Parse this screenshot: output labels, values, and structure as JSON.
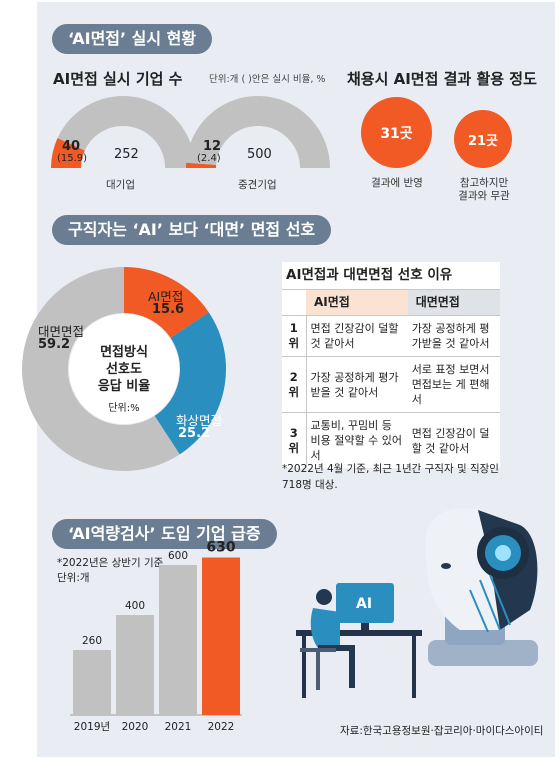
{
  "section1": {
    "title": "‘AI면접’ 실시 현황",
    "left_title": "AI면접 실시 기업 수",
    "unit_note": "단위:개 ( )안은 실시 비율, %",
    "right_title": "채용시 AI면접 결과 활용 정도"
  },
  "section2": {
    "title": "구직자는 ‘AI’ 보다 ‘대면’ 면접 선호",
    "center_line1": "면접방식",
    "center_line2": "선호도",
    "center_line3": "응답 비율",
    "center_unit": "단위:%",
    "table": {
      "title": "AI면접과 대면면접 선호 이유",
      "col_ai": "AI면접",
      "col_face": "대면면접",
      "rows": [
        {
          "rank": "1위",
          "ai": "면접 긴장감이 덜할 것 같아서",
          "face": "가장 공정하게 평가받을 것 같아서"
        },
        {
          "rank": "2위",
          "ai": "가장 공정하게 평가받을 것 같아서",
          "face": "서로 표정 보면서 면접보는 게 편해서"
        },
        {
          "rank": "3위",
          "ai": "교통비, 꾸밈비 등 비용 절약할 수 있어서",
          "face": "면접 긴장감이 덜할 것 같아서"
        }
      ]
    },
    "footnote": "*2022년 4월 기준, 최근 1년간 구직자 및 직장인 718명 대상."
  },
  "section3": {
    "title": "‘AI역량검사’ 도입 기업 급증",
    "note": "*2022년은 상반기 기준",
    "unit": "단위:개",
    "screen_text": "AI"
  },
  "source": "자료:한국고용정보원·잡코리아·마이다스아이티",
  "colors": {
    "accent": "#f15a24",
    "gray": "#c1c1c1",
    "blue": "#2a8fbf",
    "pill": "#6b7d92",
    "panel": "#e9edf3"
  },
  "chart_data": [
    {
      "type": "pie",
      "subtype": "half-donut",
      "title": "AI면접 실시 기업 수",
      "series": [
        {
          "category": "대기업",
          "values": [
            {
              "label": "40",
              "value": 40,
              "percent": "(15.9)"
            },
            {
              "label": "252",
              "value": 252
            }
          ]
        },
        {
          "category": "중견기업",
          "values": [
            {
              "label": "12",
              "value": 12,
              "percent": "(2.4)"
            },
            {
              "label": "500",
              "value": 500
            }
          ]
        }
      ]
    },
    {
      "type": "bubble",
      "title": "채용시 AI면접 결과 활용 정도",
      "items": [
        {
          "label": "결과에 반영",
          "value": 31,
          "text": "31곳"
        },
        {
          "label": "참고하지만 결과와 무관",
          "value": 21,
          "text": "21곳",
          "label_lines": [
            "참고하지만",
            "결과와 무관"
          ]
        }
      ]
    },
    {
      "type": "pie",
      "subtype": "donut",
      "slices": [
        {
          "label": "AI면접",
          "value": 15.6,
          "value_text": "15.6"
        },
        {
          "label": "화상면접",
          "value": 25.2,
          "value_text": "25.2"
        },
        {
          "label": "대면면접",
          "value": 59.2,
          "value_text": "59.2"
        }
      ]
    },
    {
      "type": "bar",
      "title": "‘AI역량검사’ 도입 기업 급증",
      "categories": [
        "2019년",
        "2020",
        "2021",
        "2022"
      ],
      "values": [
        260,
        400,
        600,
        630
      ],
      "value_labels": [
        "260",
        "400",
        "600",
        "630"
      ],
      "ylim": [
        0,
        700
      ],
      "highlight_index": 3
    }
  ]
}
